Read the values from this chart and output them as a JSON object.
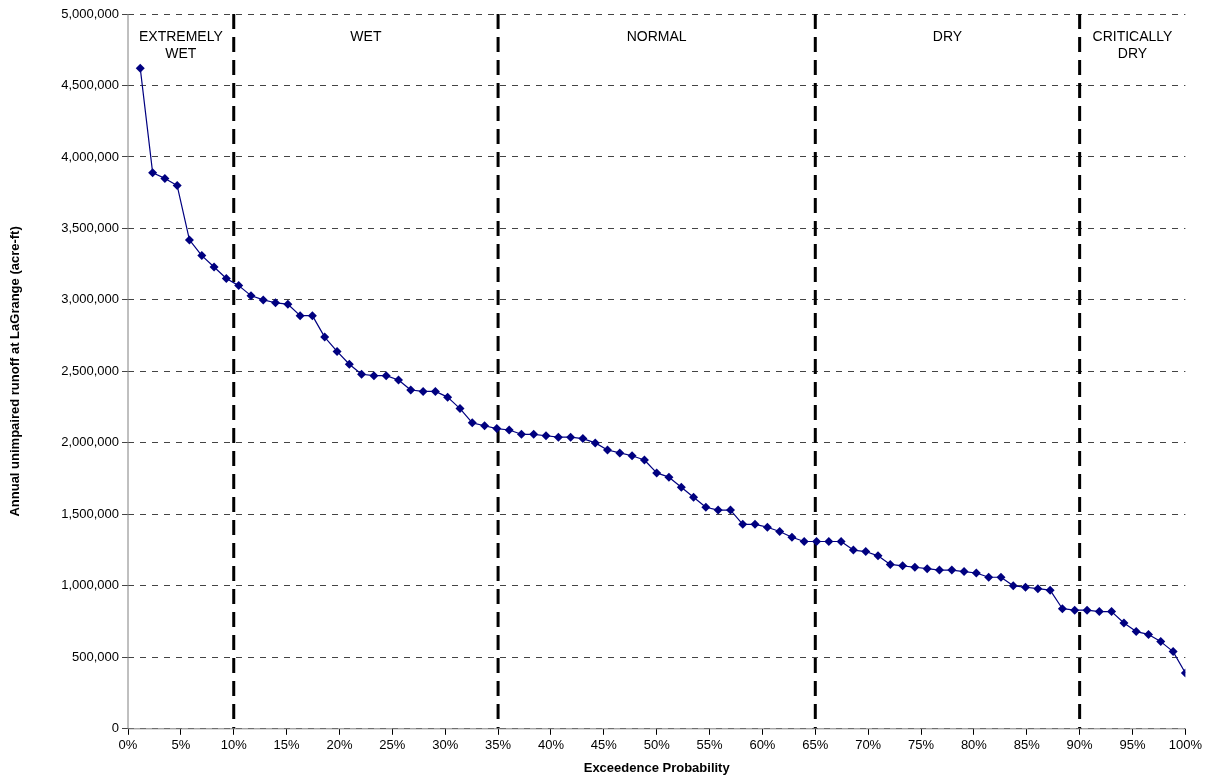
{
  "chart_data": {
    "type": "line",
    "xlabel": "Exceedence Probability",
    "ylabel": "Annual unimpaired runoff at LaGrange (acre-ft)",
    "x": [
      1.16,
      2.33,
      3.49,
      4.65,
      5.81,
      6.98,
      8.14,
      9.3,
      10.47,
      11.63,
      12.79,
      13.95,
      15.12,
      16.28,
      17.44,
      18.6,
      19.77,
      20.93,
      22.09,
      23.26,
      24.42,
      25.58,
      26.74,
      27.91,
      29.07,
      30.23,
      31.4,
      32.56,
      33.72,
      34.88,
      36.05,
      37.21,
      38.37,
      39.53,
      40.7,
      41.86,
      43.02,
      44.19,
      45.35,
      46.51,
      47.67,
      48.84,
      50.0,
      51.16,
      52.33,
      53.49,
      54.65,
      55.81,
      56.98,
      58.14,
      59.3,
      60.47,
      61.63,
      62.79,
      63.95,
      65.12,
      66.28,
      67.44,
      68.6,
      69.77,
      70.93,
      72.09,
      73.26,
      74.42,
      75.58,
      76.74,
      77.91,
      79.07,
      80.23,
      81.4,
      82.56,
      83.72,
      84.88,
      86.05,
      87.21,
      88.37,
      89.53,
      90.7,
      91.86,
      93.02,
      94.19,
      95.35,
      96.51,
      97.67,
      98.84,
      100
    ],
    "series": [
      {
        "color": "#000080",
        "values": [
          4620000,
          3890000,
          3850000,
          3800000,
          3420000,
          3310000,
          3230000,
          3150000,
          3100000,
          3030000,
          3000000,
          2980000,
          2970000,
          2890000,
          2890000,
          2740000,
          2640000,
          2550000,
          2480000,
          2470000,
          2470000,
          2440000,
          2370000,
          2360000,
          2360000,
          2320000,
          2240000,
          2140000,
          2120000,
          2100000,
          2090000,
          2060000,
          2060000,
          2050000,
          2040000,
          2040000,
          2030000,
          2000000,
          1950000,
          1930000,
          1910000,
          1880000,
          1790000,
          1760000,
          1690000,
          1620000,
          1550000,
          1530000,
          1530000,
          1430000,
          1430000,
          1410000,
          1380000,
          1340000,
          1310000,
          1310000,
          1310000,
          1310000,
          1250000,
          1240000,
          1210000,
          1150000,
          1140000,
          1130000,
          1120000,
          1110000,
          1110000,
          1100000,
          1090000,
          1060000,
          1060000,
          1000000,
          990000,
          980000,
          970000,
          840000,
          830000,
          830000,
          820000,
          820000,
          740000,
          680000,
          660000,
          610000,
          540000,
          390000
        ]
      }
    ],
    "xlim": [
      0,
      100
    ],
    "xticks": [
      {
        "value": 0,
        "label": "0%"
      },
      {
        "value": 5,
        "label": "5%"
      },
      {
        "value": 10,
        "label": "10%"
      },
      {
        "value": 15,
        "label": "15%"
      },
      {
        "value": 20,
        "label": "20%"
      },
      {
        "value": 25,
        "label": "25%"
      },
      {
        "value": 30,
        "label": "30%"
      },
      {
        "value": 35,
        "label": "35%"
      },
      {
        "value": 40,
        "label": "40%"
      },
      {
        "value": 45,
        "label": "45%"
      },
      {
        "value": 50,
        "label": "50%"
      },
      {
        "value": 55,
        "label": "55%"
      },
      {
        "value": 60,
        "label": "60%"
      },
      {
        "value": 65,
        "label": "65%"
      },
      {
        "value": 70,
        "label": "70%"
      },
      {
        "value": 75,
        "label": "75%"
      },
      {
        "value": 80,
        "label": "80%"
      },
      {
        "value": 85,
        "label": "85%"
      },
      {
        "value": 90,
        "label": "90%"
      },
      {
        "value": 95,
        "label": "95%"
      },
      {
        "value": 100,
        "label": "100%"
      }
    ],
    "ylim": [
      0,
      5000000
    ],
    "yticks": [
      0,
      {
        "value": 500000,
        "label": "500,000"
      },
      {
        "value": 1000000,
        "label": "1,000,000"
      },
      {
        "value": 1500000,
        "label": "1,500,000"
      },
      {
        "value": 2000000,
        "label": "2,000,000"
      },
      {
        "value": 2500000,
        "label": "2,500,000"
      },
      {
        "value": 3000000,
        "label": "3,000,000"
      },
      {
        "value": 3500000,
        "label": "3,500,000"
      },
      {
        "value": 4000000,
        "label": "4,000,000"
      },
      {
        "value": 4500000,
        "label": "4,500,000"
      },
      {
        "value": 5000000,
        "label": "5,000,000"
      }
    ],
    "ref_lines": [
      {
        "axis": "x",
        "value": 10,
        "color": "#000000",
        "line_style": "dashed"
      },
      {
        "axis": "x",
        "value": 35,
        "color": "#000000",
        "line_style": "dashed"
      },
      {
        "axis": "x",
        "value": 65,
        "color": "#000000",
        "line_style": "dashed"
      },
      {
        "axis": "x",
        "value": 90,
        "color": "#000000",
        "line_style": "dashed"
      }
    ],
    "annotations": [
      "EXTREMELY WET",
      "WET",
      "NORMAL",
      "DRY",
      "CRITICALLY DRY"
    ],
    "grid": "y",
    "legend": false,
    "marker": "diamond",
    "line_style": "solid"
  }
}
